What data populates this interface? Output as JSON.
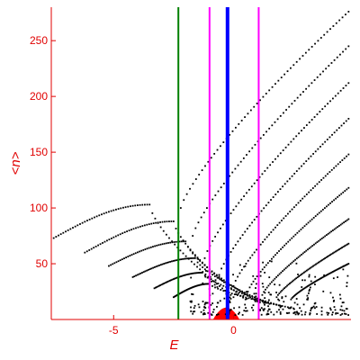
{
  "chart_data": {
    "type": "scatter",
    "xlabel": "E",
    "ylabel": "<n>",
    "xlim": [
      -7.6,
      4.9
    ],
    "ylim": [
      0,
      280
    ],
    "x_ticks": [
      -5,
      0
    ],
    "x_tick_labels": [
      "-5",
      "0"
    ],
    "y_ticks": [
      50,
      100,
      150,
      200,
      250
    ],
    "y_tick_labels": [
      "50",
      "100",
      "150",
      "200",
      "250"
    ],
    "grid": false,
    "axis_color": "#e00000",
    "vertical_lines": [
      {
        "x": -2.3,
        "color": "#008000"
      },
      {
        "x": -1.0,
        "color": "#ff00ff"
      },
      {
        "x": -0.25,
        "color": "#0000ff"
      },
      {
        "x": 1.05,
        "color": "#ff00ff"
      }
    ],
    "band_region": {
      "x_center": -0.3,
      "x_halfwidth": 0.55,
      "y_max": 10,
      "color": "#ff0000"
    },
    "point_color": "#000000",
    "series": [
      {
        "x_start": -7.5,
        "x_peak": -3.5,
        "y_start": 73,
        "y_peak": 103,
        "y_end": 20,
        "x_end": 0.0
      },
      {
        "x_start": -6.2,
        "x_peak": -2.5,
        "y_start": 60,
        "y_peak": 88,
        "y_end": 18,
        "x_end": 0.5
      },
      {
        "x_start": -5.2,
        "x_peak": -2.0,
        "y_start": 48,
        "y_peak": 70,
        "y_end": 16,
        "x_end": 1.0
      },
      {
        "x_start": -4.2,
        "x_peak": -1.6,
        "y_start": 38,
        "y_peak": 55,
        "y_end": 14,
        "x_end": 1.5
      },
      {
        "x_start": -3.3,
        "x_peak": -1.3,
        "y_start": 28,
        "y_peak": 42,
        "y_end": 12,
        "x_end": 2.0
      },
      {
        "x_start": -2.5,
        "x_peak": -1.0,
        "y_start": 20,
        "y_peak": 32,
        "y_end": 10,
        "x_end": 2.5
      }
    ],
    "upper_branches": [
      {
        "x_start": -2.2,
        "y_start": 100,
        "x_end": 4.8,
        "y_end": 276
      },
      {
        "x_start": -1.7,
        "y_start": 75,
        "x_end": 4.8,
        "y_end": 245
      },
      {
        "x_start": -1.2,
        "y_start": 55,
        "x_end": 4.8,
        "y_end": 212
      },
      {
        "x_start": -0.6,
        "y_start": 40,
        "x_end": 4.8,
        "y_end": 180
      },
      {
        "x_start": 0.0,
        "y_start": 30,
        "x_end": 4.8,
        "y_end": 148
      },
      {
        "x_start": 0.6,
        "y_start": 25,
        "x_end": 4.8,
        "y_end": 118
      },
      {
        "x_start": 1.2,
        "y_start": 22,
        "x_end": 4.8,
        "y_end": 90
      },
      {
        "x_start": 1.8,
        "y_start": 20,
        "x_end": 4.8,
        "y_end": 68
      },
      {
        "x_start": 2.4,
        "y_start": 18,
        "x_end": 4.8,
        "y_end": 50
      }
    ]
  }
}
